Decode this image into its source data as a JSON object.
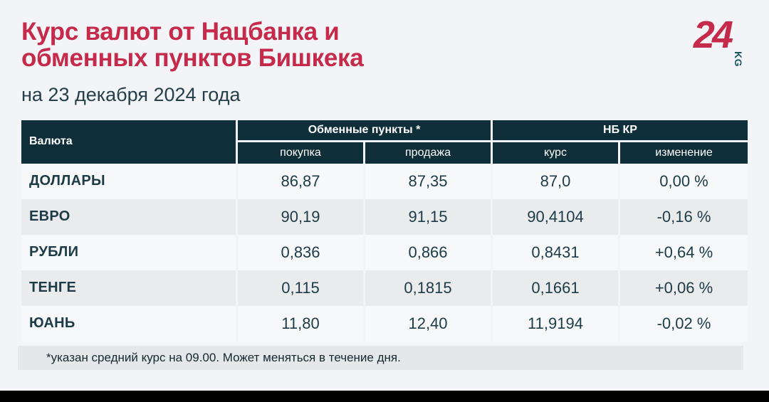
{
  "page": {
    "title_line1": "Курс валют от Нацбанка и",
    "title_line2": "обменных пунктов Бишкека",
    "subtitle": "на 23 декабря 2024 года",
    "footnote": "*указан средний курс на 09.00. Может меняться в течение дня."
  },
  "logo": {
    "number": "24",
    "suffix": "KG"
  },
  "colors": {
    "brand_red": "#c52a4a",
    "header_teal": "#0e2e39",
    "text_dark": "#1c3b47",
    "row_light": "#f7f8fa",
    "row_grey": "#e9ebed",
    "page_bg": "#f3f4f7"
  },
  "table": {
    "col_currency": "Валюта",
    "group_exchange": "Обменные пункты *",
    "group_nbkr": "НБ КР",
    "sub_buy": "покупка",
    "sub_sell": "продажа",
    "sub_rate": "курс",
    "sub_change": "изменение",
    "rows": [
      {
        "currency": "ДОЛЛАРЫ",
        "buy": "86,87",
        "sell": "87,35",
        "rate": "87,0",
        "change": "0,00 %"
      },
      {
        "currency": "ЕВРО",
        "buy": "90,19",
        "sell": "91,15",
        "rate": "90,4104",
        "change": "-0,16 %"
      },
      {
        "currency": "РУБЛИ",
        "buy": "0,836",
        "sell": "0,866",
        "rate": "0,8431",
        "change": "+0,64 %"
      },
      {
        "currency": "ТЕНГЕ",
        "buy": "0,115",
        "sell": "0,1815",
        "rate": "0,1661",
        "change": "+0,06 %"
      },
      {
        "currency": "ЮАНЬ",
        "buy": "11,80",
        "sell": "12,40",
        "rate": "11,9194",
        "change": "-0,02 %"
      }
    ]
  },
  "chart_data": {
    "type": "table",
    "title": "Курс валют от Нацбанка и обменных пунктов Бишкека",
    "subtitle": "на 23 декабря 2024 года",
    "columns": [
      "Валюта",
      "Обменные пункты * — покупка",
      "Обменные пункты * — продажа",
      "НБ КР — курс",
      "НБ КР — изменение"
    ],
    "rows": [
      [
        "ДОЛЛАРЫ",
        "86,87",
        "87,35",
        "87,0",
        "0,00 %"
      ],
      [
        "ЕВРО",
        "90,19",
        "91,15",
        "90,4104",
        "-0,16 %"
      ],
      [
        "РУБЛИ",
        "0,836",
        "0,866",
        "0,8431",
        "+0,64 %"
      ],
      [
        "ТЕНГЕ",
        "0,115",
        "0,1815",
        "0,1661",
        "+0,06 %"
      ],
      [
        "ЮАНЬ",
        "11,80",
        "12,40",
        "11,9194",
        "-0,02 %"
      ]
    ],
    "footnote": "*указан средний курс на 09.00. Может меняться в течение дня."
  }
}
